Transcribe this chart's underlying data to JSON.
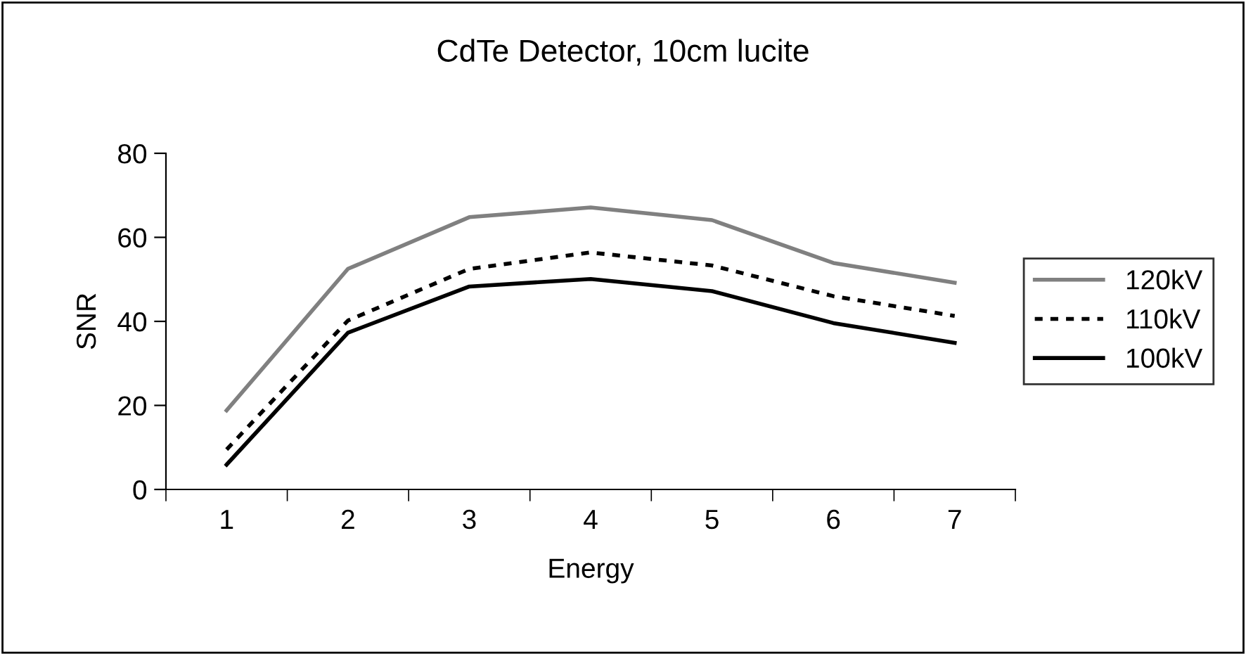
{
  "chart_data": {
    "type": "line",
    "title": "CdTe Detector, 10cm lucite",
    "xlabel": "Energy",
    "ylabel": "SNR",
    "categories": [
      "1",
      "2",
      "3",
      "4",
      "5",
      "6",
      "7"
    ],
    "ylim": [
      0,
      80
    ],
    "yticks": [
      0,
      20,
      40,
      60,
      80
    ],
    "grid": false,
    "legend": "right",
    "series": [
      {
        "name": "120kV",
        "color": "#808080",
        "line_style": "solid",
        "values": [
          18.8,
          52.5,
          64.8,
          67.1,
          64.1,
          53.9,
          49.2
        ]
      },
      {
        "name": "110kV",
        "color": "#000000",
        "line_style": "dotted",
        "values": [
          9.5,
          40.2,
          52.5,
          56.4,
          53.3,
          46.0,
          41.3
        ]
      },
      {
        "name": "100kV",
        "color": "#000000",
        "line_style": "solid",
        "values": [
          5.9,
          37.3,
          48.3,
          50.1,
          47.2,
          39.6,
          34.9
        ]
      }
    ]
  }
}
